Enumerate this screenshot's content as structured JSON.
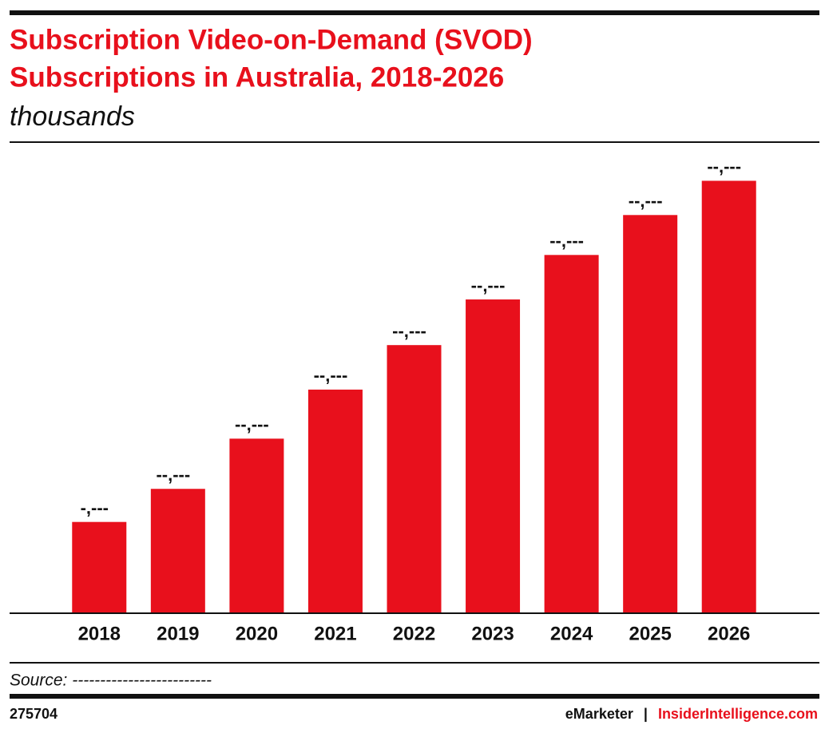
{
  "chart_data": {
    "type": "bar",
    "title": [
      "Subscription Video-on-Demand (SVOD)",
      "Subscriptions in Australia, 2018-2026"
    ],
    "subtitle": "thousands",
    "categories": [
      "2018",
      "2019",
      "2020",
      "2021",
      "2022",
      "2023",
      "2024",
      "2025",
      "2026"
    ],
    "values": [
      8000,
      10900,
      15300,
      19600,
      23500,
      27500,
      31400,
      34900,
      37900
    ],
    "value_labels": [
      "-,---",
      "--,---",
      "--,---",
      "--,---",
      "--,---",
      "--,---",
      "--,---",
      "--,---",
      "--,---"
    ],
    "color": "#e8101c",
    "ylim": [
      0,
      38000
    ]
  },
  "source": "Source: -------------------------",
  "footer": {
    "id": "275704",
    "brand": "eMarketer",
    "separator": "|",
    "site": "InsiderIntelligence.com"
  }
}
